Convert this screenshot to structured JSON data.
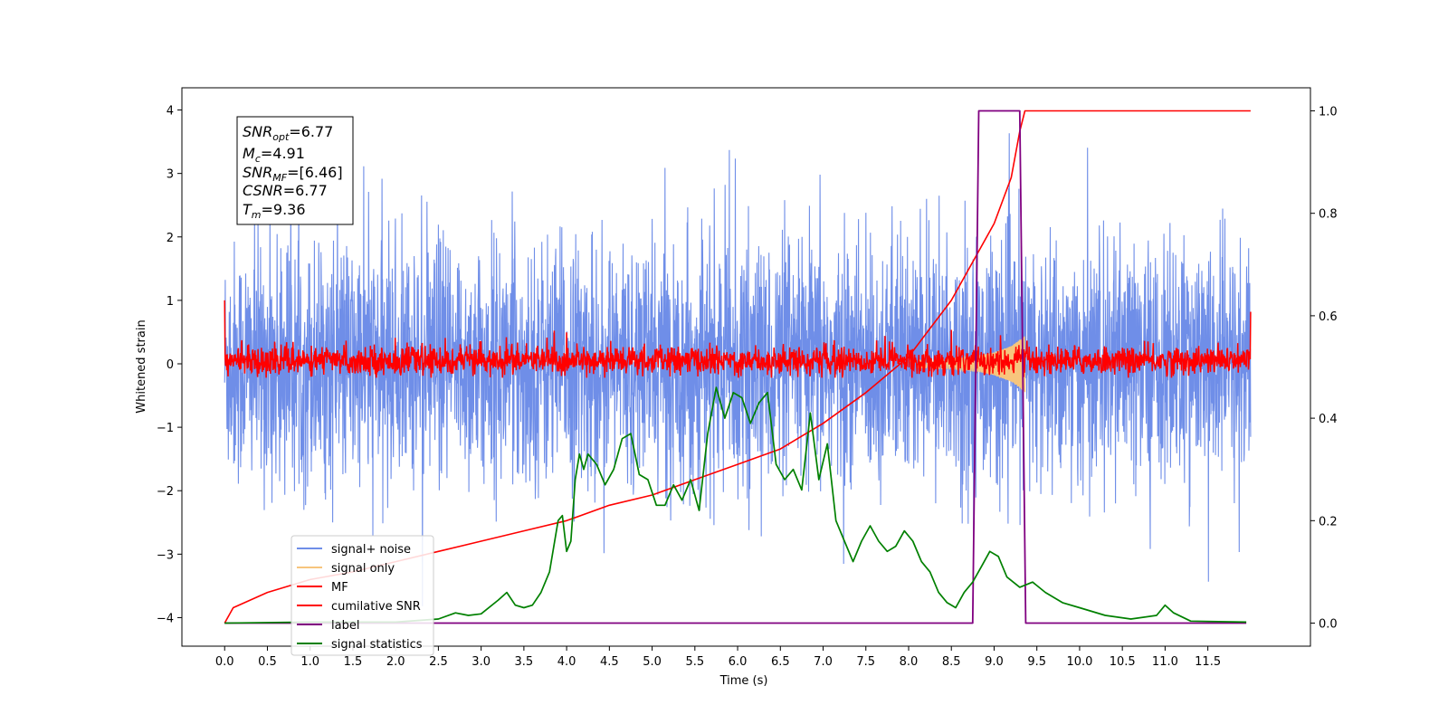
{
  "chart_data": {
    "type": "line",
    "xlabel": "Time (s)",
    "ylabel": "Whitened strain",
    "xlim": [
      -0.5,
      12.7
    ],
    "ylim_left": [
      -4.45,
      4.35
    ],
    "ylim_right": [
      -0.045,
      1.045
    ],
    "xticks": [
      "0.0",
      "0.5",
      "1.0",
      "1.5",
      "2.0",
      "2.5",
      "3.0",
      "3.5",
      "4.0",
      "4.5",
      "5.0",
      "5.5",
      "6.0",
      "6.5",
      "7.0",
      "7.5",
      "8.0",
      "8.5",
      "9.0",
      "9.5",
      "10.0",
      "10.5",
      "11.0",
      "11.5"
    ],
    "xtick_values": [
      0.0,
      0.5,
      1.0,
      1.5,
      2.0,
      2.5,
      3.0,
      3.5,
      4.0,
      4.5,
      5.0,
      5.5,
      6.0,
      6.5,
      7.0,
      7.5,
      8.0,
      8.5,
      9.0,
      9.5,
      10.0,
      10.5,
      11.0,
      11.5
    ],
    "yticks_left": [
      "−4",
      "−3",
      "−2",
      "−1",
      "0",
      "1",
      "2",
      "3",
      "4"
    ],
    "ytick_values_left": [
      -4,
      -3,
      -2,
      -1,
      0,
      1,
      2,
      3,
      4
    ],
    "yticks_right": [
      "0.0",
      "0.2",
      "0.4",
      "0.6",
      "0.8",
      "1.0"
    ],
    "ytick_values_right": [
      0.0,
      0.2,
      0.4,
      0.6,
      0.8,
      1.0
    ],
    "grid": false,
    "legend_position": "lower-left",
    "colors": {
      "noise": "#6f8ee8",
      "signal": "#f7c57d",
      "mf": "#ff0000",
      "csnr": "#ff0000",
      "label": "#800080",
      "stats": "#008000"
    },
    "info_box": {
      "snr_opt": "6.77",
      "mc": "4.91",
      "snr_mf": "[6.46]",
      "csnr": "6.77",
      "tm": "9.36"
    },
    "series": [
      {
        "name": "signal+ noise",
        "axis": "left",
        "description_level": "white noise band",
        "t_range": [
          0.0,
          12.0
        ],
        "typical_range": [
          -2.3,
          2.5
        ],
        "extreme_range": [
          -4.2,
          4.0
        ]
      },
      {
        "name": "signal only",
        "axis": "left",
        "t_range": [
          8.0,
          9.36
        ],
        "envelope_points": [
          [
            8.0,
            0.05
          ],
          [
            8.5,
            0.08
          ],
          [
            8.8,
            0.12
          ],
          [
            9.0,
            0.18
          ],
          [
            9.2,
            0.28
          ],
          [
            9.3,
            0.38
          ],
          [
            9.36,
            0.45
          ]
        ]
      },
      {
        "name": "MF",
        "axis": "left",
        "t_range": [
          0.0,
          12.0
        ],
        "typical_range": [
          -0.2,
          0.3
        ],
        "start_value": 1.0,
        "end_value": 0.82
      },
      {
        "name": "cumilative SNR",
        "axis": "right",
        "points": [
          [
            0.0,
            0.0
          ],
          [
            0.1,
            0.03
          ],
          [
            0.5,
            0.06
          ],
          [
            1.0,
            0.085
          ],
          [
            1.5,
            0.1
          ],
          [
            2.0,
            0.12
          ],
          [
            2.5,
            0.14
          ],
          [
            3.0,
            0.16
          ],
          [
            3.5,
            0.18
          ],
          [
            4.0,
            0.2
          ],
          [
            4.5,
            0.23
          ],
          [
            5.0,
            0.25
          ],
          [
            5.5,
            0.28
          ],
          [
            6.0,
            0.31
          ],
          [
            6.5,
            0.34
          ],
          [
            7.0,
            0.39
          ],
          [
            7.5,
            0.45
          ],
          [
            8.0,
            0.52
          ],
          [
            8.5,
            0.63
          ],
          [
            9.0,
            0.78
          ],
          [
            9.2,
            0.87
          ],
          [
            9.3,
            0.96
          ],
          [
            9.36,
            1.0
          ],
          [
            12.0,
            1.0
          ]
        ]
      },
      {
        "name": "label",
        "axis": "right",
        "points": [
          [
            0.0,
            0.0
          ],
          [
            8.75,
            0.0
          ],
          [
            8.82,
            1.0
          ],
          [
            9.3,
            1.0
          ],
          [
            9.37,
            0.0
          ],
          [
            11.95,
            0.0
          ]
        ]
      },
      {
        "name": "signal statistics",
        "axis": "right",
        "points": [
          [
            0.0,
            0.0
          ],
          [
            1.0,
            0.002
          ],
          [
            2.0,
            0.002
          ],
          [
            2.5,
            0.008
          ],
          [
            2.7,
            0.02
          ],
          [
            2.85,
            0.015
          ],
          [
            3.0,
            0.018
          ],
          [
            3.2,
            0.045
          ],
          [
            3.3,
            0.06
          ],
          [
            3.4,
            0.035
          ],
          [
            3.5,
            0.03
          ],
          [
            3.6,
            0.035
          ],
          [
            3.7,
            0.06
          ],
          [
            3.8,
            0.1
          ],
          [
            3.9,
            0.2
          ],
          [
            3.95,
            0.21
          ],
          [
            4.0,
            0.14
          ],
          [
            4.05,
            0.16
          ],
          [
            4.1,
            0.28
          ],
          [
            4.15,
            0.33
          ],
          [
            4.2,
            0.3
          ],
          [
            4.25,
            0.33
          ],
          [
            4.35,
            0.31
          ],
          [
            4.45,
            0.27
          ],
          [
            4.55,
            0.3
          ],
          [
            4.65,
            0.36
          ],
          [
            4.75,
            0.37
          ],
          [
            4.85,
            0.29
          ],
          [
            4.95,
            0.28
          ],
          [
            5.05,
            0.23
          ],
          [
            5.15,
            0.23
          ],
          [
            5.25,
            0.27
          ],
          [
            5.35,
            0.24
          ],
          [
            5.45,
            0.28
          ],
          [
            5.55,
            0.22
          ],
          [
            5.65,
            0.37
          ],
          [
            5.75,
            0.46
          ],
          [
            5.85,
            0.4
          ],
          [
            5.95,
            0.45
          ],
          [
            6.05,
            0.44
          ],
          [
            6.15,
            0.39
          ],
          [
            6.25,
            0.43
          ],
          [
            6.35,
            0.45
          ],
          [
            6.45,
            0.31
          ],
          [
            6.55,
            0.28
          ],
          [
            6.65,
            0.3
          ],
          [
            6.75,
            0.26
          ],
          [
            6.85,
            0.41
          ],
          [
            6.95,
            0.28
          ],
          [
            7.05,
            0.35
          ],
          [
            7.15,
            0.2
          ],
          [
            7.25,
            0.16
          ],
          [
            7.35,
            0.12
          ],
          [
            7.45,
            0.16
          ],
          [
            7.55,
            0.19
          ],
          [
            7.65,
            0.16
          ],
          [
            7.75,
            0.14
          ],
          [
            7.85,
            0.15
          ],
          [
            7.95,
            0.18
          ],
          [
            8.05,
            0.16
          ],
          [
            8.15,
            0.12
          ],
          [
            8.25,
            0.1
          ],
          [
            8.35,
            0.06
          ],
          [
            8.45,
            0.04
          ],
          [
            8.55,
            0.03
          ],
          [
            8.65,
            0.06
          ],
          [
            8.75,
            0.08
          ],
          [
            8.85,
            0.11
          ],
          [
            8.95,
            0.14
          ],
          [
            9.05,
            0.13
          ],
          [
            9.15,
            0.09
          ],
          [
            9.3,
            0.07
          ],
          [
            9.45,
            0.08
          ],
          [
            9.6,
            0.06
          ],
          [
            9.8,
            0.04
          ],
          [
            10.0,
            0.03
          ],
          [
            10.3,
            0.015
          ],
          [
            10.6,
            0.008
          ],
          [
            10.9,
            0.015
          ],
          [
            11.0,
            0.035
          ],
          [
            11.1,
            0.02
          ],
          [
            11.3,
            0.004
          ],
          [
            11.95,
            0.002
          ]
        ]
      }
    ]
  }
}
